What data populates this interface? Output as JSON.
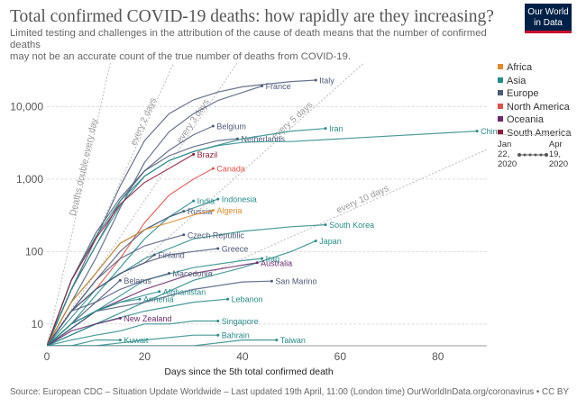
{
  "header": {
    "title": "Total confirmed COVID-19 deaths: how rapidly are they increasing?",
    "subtitle_line1": "Limited testing and challenges in the attribution of the cause of death means that the number of confirmed deaths",
    "subtitle_line2": "may not be an accurate count of the true number of deaths from COVID-19.",
    "logo_line1": "Our World",
    "logo_line2": "in Data"
  },
  "legend": {
    "items": [
      {
        "label": "Africa",
        "color": "#e08a2e"
      },
      {
        "label": "Asia",
        "color": "#2a8a8a"
      },
      {
        "label": "Europe",
        "color": "#4e5a7a"
      },
      {
        "label": "North America",
        "color": "#e0504a"
      },
      {
        "label": "Oceania",
        "color": "#6b2a6b"
      },
      {
        "label": "South America",
        "color": "#8a1f3a"
      }
    ]
  },
  "timeline": {
    "start_month": "Jan",
    "start_day": "22,",
    "start_year": "2020",
    "end_month": "Apr",
    "end_day": "19,",
    "end_year": "2020"
  },
  "footer": {
    "source": "Source: European CDC – Situation Update Worldwide – Last updated 19th April, 11:00 (London time)",
    "url": "OurWorldInData.org/coronavirus • CC BY"
  },
  "chart_data": {
    "type": "line",
    "xlabel": "Days since the 5th total confirmed death",
    "ylabel": "",
    "y_scale": "log",
    "xlim": [
      0,
      90
    ],
    "ylim": [
      5,
      40000
    ],
    "x_ticks": [
      0,
      20,
      40,
      60,
      80
    ],
    "y_ticks": [
      10,
      100,
      1000,
      10000
    ],
    "y_tick_labels": [
      "10",
      "100",
      "1,000",
      "10,000"
    ],
    "grid": "horizontal",
    "legend_placement": "right",
    "reference_lines": [
      {
        "label": "Deaths double every day",
        "doubling_days": 1
      },
      {
        "label": "every 2 days",
        "doubling_days": 2
      },
      {
        "label": "every 3 days",
        "doubling_days": 3
      },
      {
        "label": "every 5 days",
        "doubling_days": 5
      },
      {
        "label": "every 10 days",
        "doubling_days": 10
      }
    ],
    "series": [
      {
        "name": "Italy",
        "region": "Europe",
        "x": [
          0,
          5,
          10,
          15,
          20,
          25,
          30,
          35,
          40,
          45,
          50,
          55
        ],
        "y": [
          5,
          30,
          150,
          800,
          3400,
          8000,
          12400,
          15900,
          18800,
          20500,
          22200,
          23200
        ]
      },
      {
        "name": "France",
        "region": "Europe",
        "x": [
          0,
          5,
          10,
          15,
          20,
          25,
          30,
          35,
          40,
          44
        ],
        "y": [
          5,
          20,
          80,
          400,
          1700,
          4500,
          8000,
          12200,
          15700,
          19300
        ]
      },
      {
        "name": "Belgium",
        "region": "Europe",
        "x": [
          0,
          5,
          10,
          15,
          20,
          25,
          30,
          34
        ],
        "y": [
          5,
          30,
          120,
          500,
          1300,
          2500,
          4100,
          5400
        ]
      },
      {
        "name": "Netherlands",
        "region": "Europe",
        "x": [
          0,
          5,
          10,
          15,
          20,
          25,
          30,
          35,
          39
        ],
        "y": [
          5,
          40,
          180,
          550,
          1300,
          2100,
          2800,
          3400,
          3600
        ]
      },
      {
        "name": "Iran",
        "region": "Asia",
        "x": [
          0,
          5,
          10,
          15,
          20,
          25,
          30,
          40,
          50,
          57
        ],
        "y": [
          5,
          30,
          120,
          430,
          1100,
          1800,
          2400,
          3600,
          4600,
          5000
        ]
      },
      {
        "name": "China",
        "region": "Asia",
        "x": [
          0,
          5,
          10,
          15,
          20,
          25,
          30,
          35,
          40,
          45,
          50,
          88
        ],
        "y": [
          5,
          40,
          160,
          500,
          1100,
          1800,
          2400,
          2900,
          3200,
          3300,
          3300,
          4600
        ]
      },
      {
        "name": "Brazil",
        "region": "South America",
        "x": [
          0,
          5,
          10,
          15,
          20,
          25,
          30
        ],
        "y": [
          5,
          40,
          150,
          450,
          900,
          1400,
          2200
        ]
      },
      {
        "name": "Canada",
        "region": "North America",
        "x": [
          0,
          5,
          10,
          15,
          20,
          25,
          30,
          34
        ],
        "y": [
          5,
          15,
          30,
          80,
          250,
          600,
          1000,
          1400
        ]
      },
      {
        "name": "India",
        "region": "Asia",
        "x": [
          0,
          5,
          10,
          15,
          20,
          25,
          30
        ],
        "y": [
          5,
          10,
          25,
          60,
          150,
          300,
          500
        ]
      },
      {
        "name": "Indonesia",
        "region": "Asia",
        "x": [
          0,
          5,
          10,
          15,
          20,
          25,
          30,
          35
        ],
        "y": [
          5,
          20,
          50,
          130,
          200,
          300,
          400,
          530
        ]
      },
      {
        "name": "Russia",
        "region": "Europe",
        "x": [
          0,
          5,
          10,
          15,
          20,
          25,
          28
        ],
        "y": [
          5,
          15,
          40,
          100,
          200,
          300,
          360
        ]
      },
      {
        "name": "Algeria",
        "region": "Africa",
        "x": [
          0,
          5,
          10,
          15,
          20,
          25,
          30,
          34
        ],
        "y": [
          5,
          20,
          50,
          130,
          200,
          250,
          320,
          370
        ]
      },
      {
        "name": "South Korea",
        "region": "Asia",
        "x": [
          0,
          10,
          20,
          30,
          40,
          50,
          57
        ],
        "y": [
          5,
          30,
          80,
          150,
          190,
          220,
          234
        ]
      },
      {
        "name": "Japan",
        "region": "Asia",
        "x": [
          0,
          10,
          20,
          30,
          40,
          50,
          55
        ],
        "y": [
          5,
          10,
          20,
          40,
          60,
          100,
          140
        ]
      },
      {
        "name": "Czech Republic",
        "region": "Europe",
        "x": [
          0,
          5,
          10,
          15,
          20,
          25,
          28
        ],
        "y": [
          5,
          15,
          40,
          80,
          120,
          150,
          170
        ]
      },
      {
        "name": "Finland",
        "region": "Europe",
        "x": [
          0,
          5,
          10,
          15,
          20,
          22
        ],
        "y": [
          5,
          15,
          30,
          50,
          70,
          90
        ]
      },
      {
        "name": "Greece",
        "region": "Europe",
        "x": [
          0,
          5,
          10,
          15,
          20,
          25,
          30,
          35
        ],
        "y": [
          5,
          15,
          30,
          50,
          70,
          90,
          100,
          110
        ]
      },
      {
        "name": "Australia",
        "region": "Oceania",
        "x": [
          0,
          10,
          20,
          30,
          40,
          43
        ],
        "y": [
          5,
          15,
          30,
          50,
          65,
          70
        ]
      },
      {
        "name": "Iraq",
        "region": "Asia",
        "x": [
          0,
          10,
          20,
          30,
          40,
          44
        ],
        "y": [
          5,
          15,
          40,
          60,
          75,
          80
        ]
      },
      {
        "name": "Belarus",
        "region": "Europe",
        "x": [
          0,
          5,
          10,
          15
        ],
        "y": [
          5,
          10,
          20,
          40
        ]
      },
      {
        "name": "Macedonia",
        "region": "Europe",
        "x": [
          0,
          5,
          10,
          15,
          20,
          25
        ],
        "y": [
          5,
          15,
          20,
          30,
          40,
          50
        ]
      },
      {
        "name": "San Marino",
        "region": "Europe",
        "x": [
          0,
          10,
          20,
          30,
          40,
          46
        ],
        "y": [
          5,
          15,
          20,
          30,
          38,
          39
        ]
      },
      {
        "name": "Afghanistan",
        "region": "Asia",
        "x": [
          0,
          5,
          10,
          15,
          20,
          23
        ],
        "y": [
          5,
          10,
          15,
          20,
          25,
          28
        ]
      },
      {
        "name": "Armenia",
        "region": "Asia",
        "x": [
          0,
          5,
          10,
          15,
          19
        ],
        "y": [
          5,
          10,
          15,
          20,
          22
        ]
      },
      {
        "name": "Lebanon",
        "region": "Asia",
        "x": [
          0,
          10,
          20,
          30,
          37
        ],
        "y": [
          5,
          10,
          15,
          20,
          22
        ]
      },
      {
        "name": "New Zealand",
        "region": "Oceania",
        "x": [
          0,
          5,
          10,
          15
        ],
        "y": [
          5,
          8,
          10,
          12
        ]
      },
      {
        "name": "Singapore",
        "region": "Asia",
        "x": [
          0,
          5,
          10,
          15,
          20,
          25,
          30,
          35
        ],
        "y": [
          5,
          6,
          7,
          8,
          10,
          10,
          11,
          11
        ]
      },
      {
        "name": "Bahrain",
        "region": "Asia",
        "x": [
          0,
          10,
          20,
          30,
          35
        ],
        "y": [
          5,
          5,
          6,
          7,
          7
        ]
      },
      {
        "name": "Kuwait",
        "region": "Asia",
        "x": [
          0,
          5,
          10,
          15
        ],
        "y": [
          5,
          5,
          6,
          6
        ]
      },
      {
        "name": "Taiwan",
        "region": "Asia",
        "x": [
          0,
          10,
          20,
          30,
          40,
          47
        ],
        "y": [
          5,
          5,
          5,
          5,
          6,
          6
        ]
      }
    ]
  }
}
